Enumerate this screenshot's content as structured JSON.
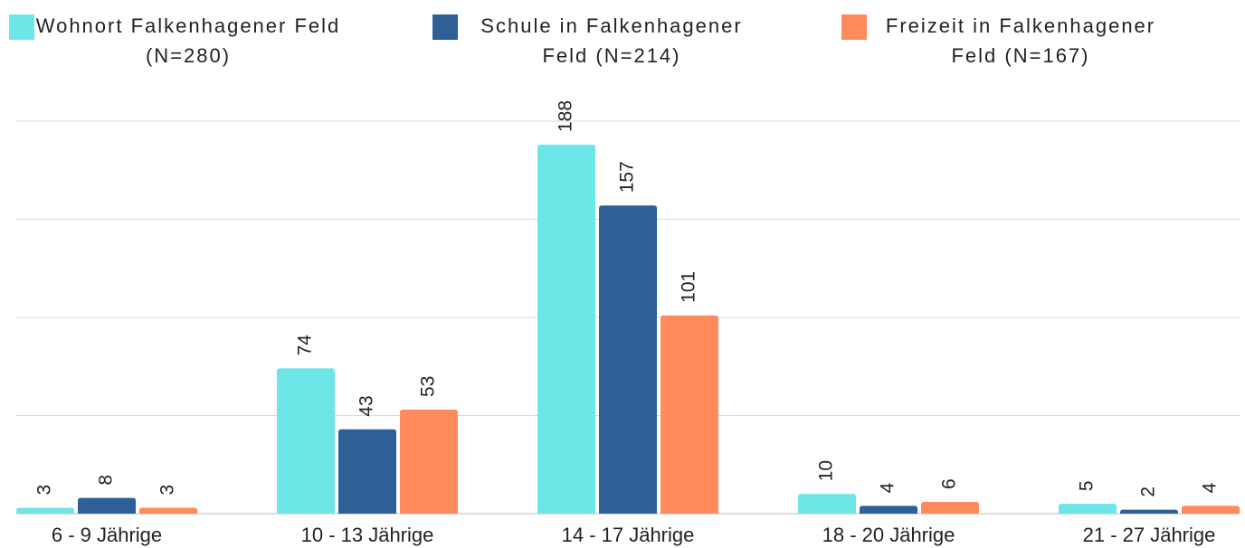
{
  "chart_data": {
    "type": "bar",
    "categories": [
      "6 - 9 Jährige",
      "10 - 13 Jährige",
      "14 - 17 Jährige",
      "18 - 20 Jährige",
      "21 - 27 Jährige"
    ],
    "series": [
      {
        "name": "Wohnort Falkenhagener Feld (N=280)",
        "color": "#6de6e8",
        "values": [
          3,
          74,
          188,
          10,
          5
        ]
      },
      {
        "name": "Schule in Falkenhagener Feld (N=214)",
        "color": "#2e5f97",
        "values": [
          8,
          43,
          157,
          4,
          2
        ]
      },
      {
        "name": "Freizeit in Falkenhagener Feld (N=167)",
        "color": "#ff8a5b",
        "values": [
          3,
          53,
          101,
          6,
          4
        ]
      }
    ],
    "ylim": [
      0,
      200
    ],
    "yticks": [
      0,
      50,
      100,
      150,
      200
    ],
    "grid": true,
    "legend": "top"
  }
}
